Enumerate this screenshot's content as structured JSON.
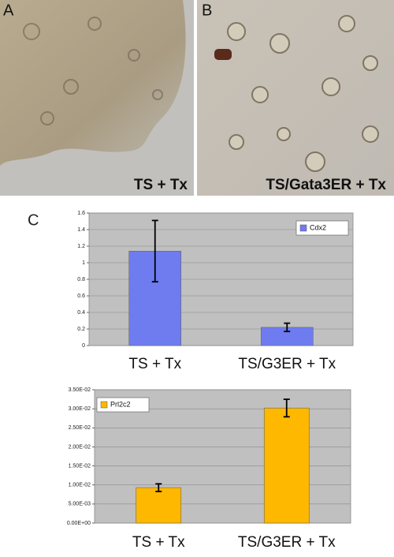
{
  "panels": {
    "a": {
      "letter": "A",
      "caption": "TS + Tx"
    },
    "b": {
      "letter": "B",
      "caption": "TS/Gata3ER + Tx"
    },
    "c": {
      "letter": "C"
    }
  },
  "chart_data": [
    {
      "type": "bar",
      "categories": [
        "TS + Tx",
        "TS/G3ER + Tx"
      ],
      "series": [
        {
          "name": "Cdx2",
          "color": "#6e7cf0",
          "values": [
            1.14,
            0.22
          ],
          "errors": [
            0.37,
            0.05
          ]
        }
      ],
      "ylim": [
        0,
        1.6
      ],
      "yticks": [
        0,
        0.2,
        0.4,
        0.6,
        0.8,
        1,
        1.2,
        1.4,
        1.6
      ],
      "grid": true,
      "legend": "top-right"
    },
    {
      "type": "bar",
      "categories": [
        "TS + Tx",
        "TS/G3ER + Tx"
      ],
      "series": [
        {
          "name": "Prl2c2",
          "color": "#ffb800",
          "values": [
            0.0093,
            0.0302
          ],
          "errors": [
            0.001,
            0.0023
          ]
        }
      ],
      "ylim": [
        0,
        0.035
      ],
      "yticks": [
        {
          "value": 0,
          "label": "0.00E+00"
        },
        {
          "value": 0.005,
          "label": "5.00E-03"
        },
        {
          "value": 0.01,
          "label": "1.00E-02"
        },
        {
          "value": 0.015,
          "label": "1.50E-02"
        },
        {
          "value": 0.02,
          "label": "2.00E-02"
        },
        {
          "value": 0.025,
          "label": "2.50E-02"
        },
        {
          "value": 0.03,
          "label": "3.00E-02"
        },
        {
          "value": 0.035,
          "label": "3.50E-02"
        }
      ],
      "grid": true,
      "legend": "top-left"
    }
  ]
}
